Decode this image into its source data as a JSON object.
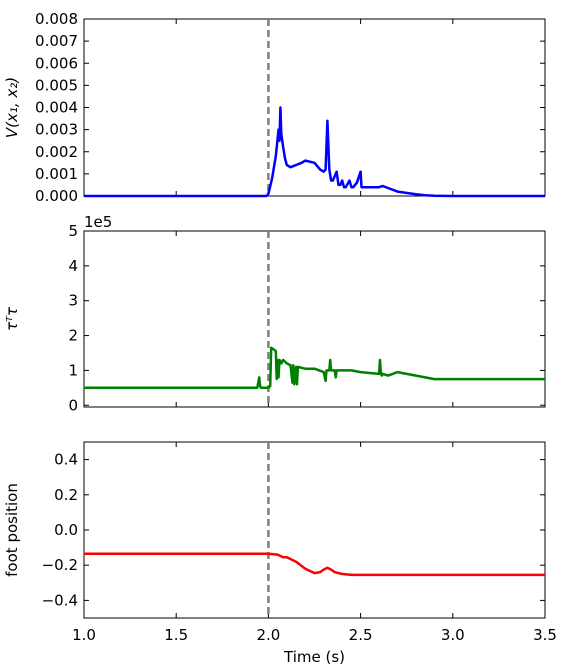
{
  "figure": {
    "xlabel": "Time (s)",
    "xticks": [
      "1.0",
      "1.5",
      "2.0",
      "2.5",
      "3.0",
      "3.5"
    ]
  },
  "chart_data": [
    {
      "type": "line",
      "ylabel": "V(x₁, x₂)",
      "xlim": [
        1.0,
        3.5
      ],
      "ylim": [
        0.0,
        0.008
      ],
      "yticks": [
        "0.000",
        "0.001",
        "0.002",
        "0.003",
        "0.004",
        "0.005",
        "0.006",
        "0.007",
        "0.008"
      ],
      "ytick_values": [
        0,
        0.001,
        0.002,
        0.003,
        0.004,
        0.005,
        0.006,
        0.007,
        0.008
      ],
      "vline_x": 2.0,
      "color": "#0000ff",
      "series": [
        {
          "x": [
            1.0,
            1.5,
            1.9,
            1.99,
            2.0,
            2.02,
            2.04,
            2.055,
            2.06,
            2.065,
            2.07,
            2.08,
            2.09,
            2.1,
            2.12,
            2.15,
            2.18,
            2.2,
            2.25,
            2.28,
            2.3,
            2.31,
            2.32,
            2.33,
            2.34,
            2.35,
            2.37,
            2.38,
            2.39,
            2.4,
            2.41,
            2.42,
            2.44,
            2.45,
            2.46,
            2.48,
            2.5,
            2.505,
            2.51,
            2.55,
            2.6,
            2.62,
            2.7,
            2.8,
            2.85,
            2.9,
            3.0,
            3.5
          ],
          "y": [
            0.0,
            0.0,
            0.0,
            0.0,
            0.0001,
            0.0008,
            0.0018,
            0.003,
            0.0025,
            0.004,
            0.0028,
            0.0022,
            0.0017,
            0.0014,
            0.0013,
            0.0014,
            0.0015,
            0.0016,
            0.0015,
            0.0012,
            0.0011,
            0.0012,
            0.0034,
            0.0012,
            0.0007,
            0.0007,
            0.0011,
            0.0005,
            0.0005,
            0.0007,
            0.0004,
            0.0004,
            0.0007,
            0.0004,
            0.0004,
            0.0006,
            0.0011,
            0.0004,
            0.0004,
            0.0004,
            0.0004,
            0.00045,
            0.0002,
            8e-05,
            3e-05,
            1e-05,
            0.0,
            0.0
          ]
        }
      ]
    },
    {
      "type": "line",
      "ylabel": "τᵀτ",
      "offset_text": "1e5",
      "xlim": [
        1.0,
        3.5
      ],
      "ylim": [
        -0.05,
        5.0
      ],
      "yticks": [
        "0",
        "1",
        "2",
        "3",
        "4",
        "5"
      ],
      "ytick_values": [
        0,
        1,
        2,
        3,
        4,
        5
      ],
      "vline_x": 2.0,
      "color": "#008000",
      "series": [
        {
          "x": [
            1.0,
            1.5,
            1.94,
            1.95,
            1.955,
            1.96,
            2.0,
            2.01,
            2.015,
            2.03,
            2.04,
            2.045,
            2.05,
            2.055,
            2.06,
            2.07,
            2.08,
            2.1,
            2.12,
            2.13,
            2.135,
            2.14,
            2.15,
            2.155,
            2.16,
            2.2,
            2.25,
            2.3,
            2.31,
            2.315,
            2.32,
            2.33,
            2.335,
            2.34,
            2.36,
            2.365,
            2.37,
            2.4,
            2.45,
            2.5,
            2.6,
            2.605,
            2.61,
            2.615,
            2.62,
            2.65,
            2.7,
            2.8,
            2.9,
            3.0,
            3.2,
            3.5
          ],
          "y": [
            0.5,
            0.5,
            0.5,
            0.8,
            0.55,
            0.5,
            0.5,
            0.55,
            1.65,
            1.6,
            1.55,
            0.75,
            1.3,
            0.8,
            1.3,
            1.2,
            1.3,
            1.2,
            1.15,
            0.65,
            1.15,
            0.6,
            1.1,
            0.6,
            1.1,
            1.05,
            1.05,
            0.95,
            0.7,
            1.0,
            1.0,
            1.0,
            1.3,
            1.0,
            1.0,
            0.8,
            1.0,
            1.0,
            1.0,
            0.95,
            0.9,
            1.3,
            0.9,
            0.85,
            0.9,
            0.85,
            0.95,
            0.85,
            0.75,
            0.75,
            0.75,
            0.75
          ]
        }
      ]
    },
    {
      "type": "line",
      "ylabel": "foot position",
      "xlim": [
        1.0,
        3.5
      ],
      "ylim": [
        -0.5,
        0.5
      ],
      "yticks": [
        "−0.4",
        "−0.2",
        "0.0",
        "0.2",
        "0.4"
      ],
      "ytick_values": [
        -0.4,
        -0.2,
        0.0,
        0.2,
        0.4
      ],
      "vline_x": 2.0,
      "color": "#ff0000",
      "series": [
        {
          "x": [
            1.0,
            1.5,
            2.0,
            2.05,
            2.08,
            2.1,
            2.15,
            2.2,
            2.25,
            2.28,
            2.3,
            2.32,
            2.34,
            2.36,
            2.4,
            2.45,
            2.5,
            3.0,
            3.5
          ],
          "y": [
            -0.135,
            -0.135,
            -0.135,
            -0.14,
            -0.155,
            -0.155,
            -0.18,
            -0.22,
            -0.245,
            -0.24,
            -0.225,
            -0.215,
            -0.225,
            -0.24,
            -0.25,
            -0.255,
            -0.255,
            -0.255,
            -0.255
          ]
        }
      ]
    }
  ]
}
